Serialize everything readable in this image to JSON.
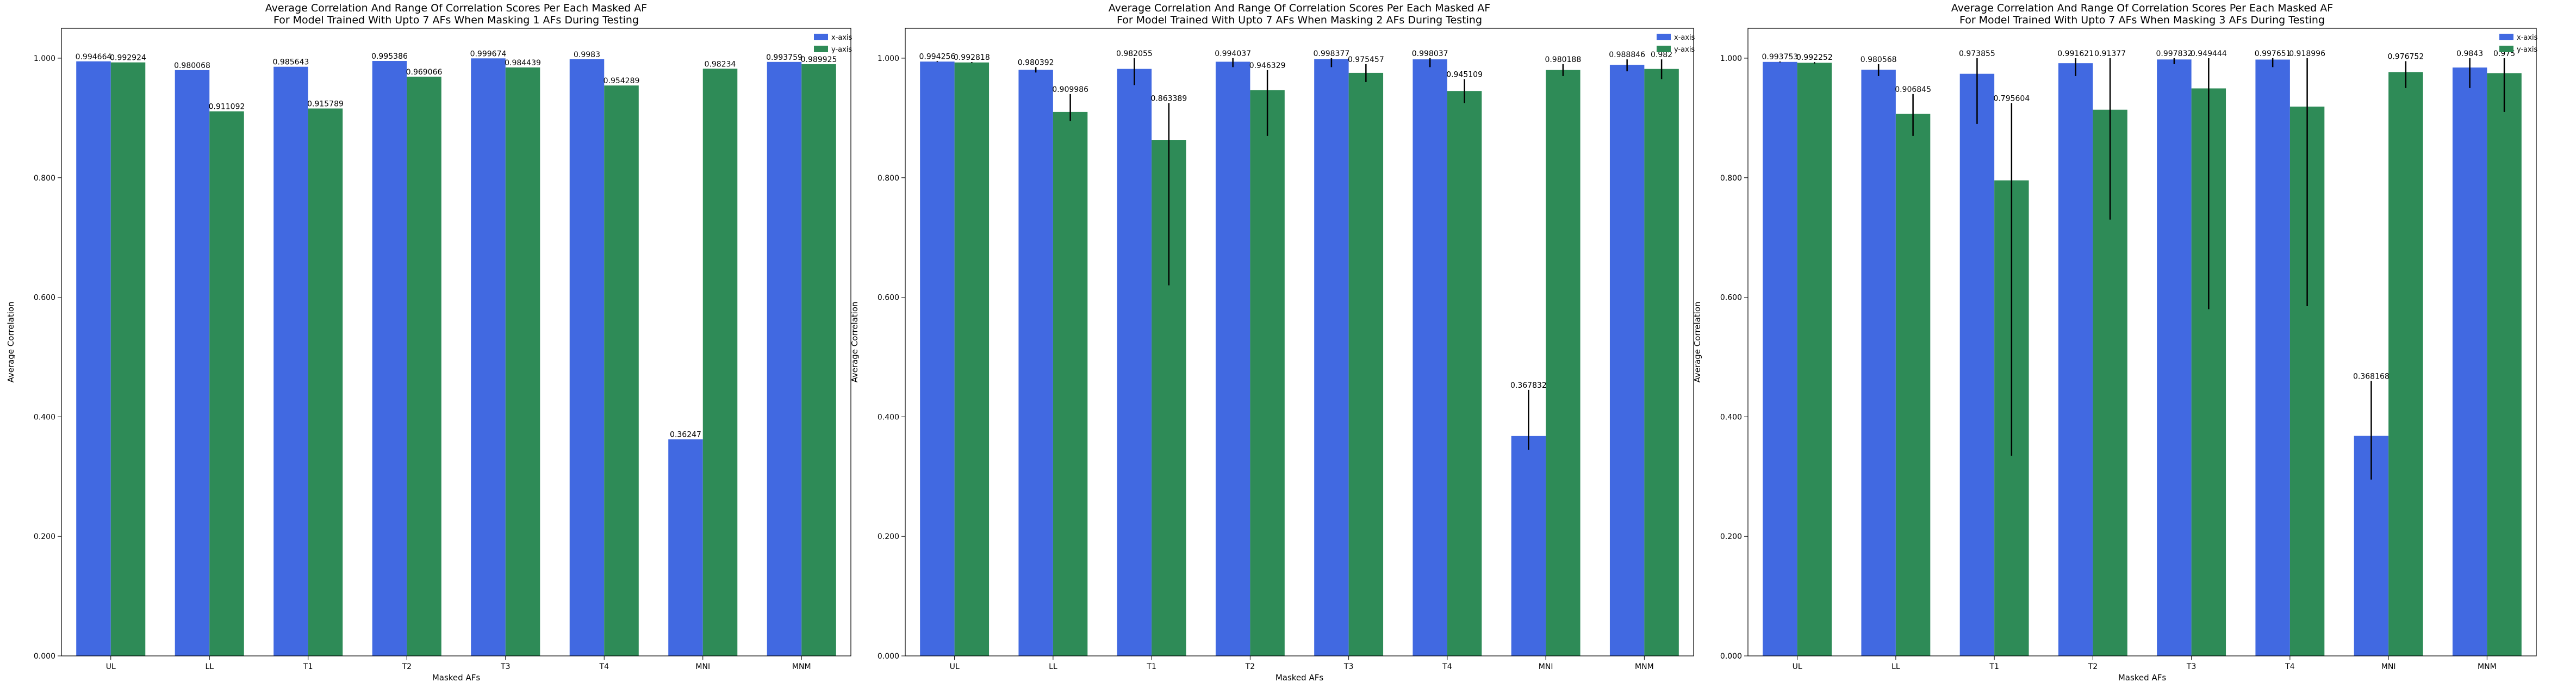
{
  "colors": {
    "x_axis": "#4169e1",
    "y_axis": "#2e8b57",
    "error_bar": "#000000"
  },
  "chart_data": [
    {
      "type": "bar",
      "title": "Average Correlation And Range Of Correlation Scores Per Each Masked AF",
      "subtitle": "For Model Trained With Upto 7 AFs When Masking 1 AFs During Testing",
      "xlabel": "Masked AFs",
      "ylabel": "Average Correlation",
      "ylim": [
        0,
        1.05
      ],
      "yticks": [
        "0.000",
        "0.200",
        "0.400",
        "0.600",
        "0.800",
        "1.000"
      ],
      "categories": [
        "UL",
        "LL",
        "T1",
        "T2",
        "T3",
        "T4",
        "MNI",
        "MNM"
      ],
      "legend": "top-right",
      "series": [
        {
          "name": "x-axis",
          "values": [
            0.994664,
            0.980068,
            0.985643,
            0.995386,
            0.999674,
            0.9983,
            0.36247,
            0.993759
          ],
          "labels": [
            "0.994664",
            "0.980068",
            "0.985643",
            "0.995386",
            "0.999674",
            "0.9983",
            "0.36247",
            "0.993759"
          ],
          "err": [
            [
              0.994664,
              0.994664
            ],
            [
              0.980068,
              0.980068
            ],
            [
              0.985643,
              0.985643
            ],
            [
              0.995386,
              0.995386
            ],
            [
              0.999674,
              0.999674
            ],
            [
              0.9983,
              0.9983
            ],
            [
              0.36247,
              0.36247
            ],
            [
              0.993759,
              0.993759
            ]
          ]
        },
        {
          "name": "y-axis",
          "values": [
            0.992924,
            0.911092,
            0.915789,
            0.969066,
            0.984439,
            0.954289,
            0.98234,
            0.989925
          ],
          "labels": [
            "0.992924",
            "0.911092",
            "0.915789",
            "0.969066",
            "0.984439",
            "0.954289",
            "0.98234",
            "0.989925"
          ],
          "err": [
            [
              0.992924,
              0.992924
            ],
            [
              0.911092,
              0.911092
            ],
            [
              0.915789,
              0.915789
            ],
            [
              0.969066,
              0.969066
            ],
            [
              0.984439,
              0.984439
            ],
            [
              0.954289,
              0.954289
            ],
            [
              0.98234,
              0.98234
            ],
            [
              0.989925,
              0.989925
            ]
          ]
        }
      ]
    },
    {
      "type": "bar",
      "title": "Average Correlation And Range Of Correlation Scores Per Each Masked AF",
      "subtitle": "For Model Trained With Upto 7 AFs When Masking 2 AFs During Testing",
      "xlabel": "Masked AFs",
      "ylabel": "Average Correlation",
      "ylim": [
        0,
        1.05
      ],
      "yticks": [
        "0.000",
        "0.200",
        "0.400",
        "0.600",
        "0.800",
        "1.000"
      ],
      "categories": [
        "UL",
        "LL",
        "T1",
        "T2",
        "T3",
        "T4",
        "MNI",
        "MNM"
      ],
      "legend": "top-right",
      "series": [
        {
          "name": "x-axis",
          "values": [
            0.994256,
            0.980392,
            0.982055,
            0.994037,
            0.998377,
            0.998037,
            0.367832,
            0.988846
          ],
          "labels": [
            "0.994256",
            "0.980392",
            "0.982055",
            "0.994037",
            "0.998377",
            "0.998037",
            "0.367832",
            "0.988846"
          ],
          "err": [
            [
              0.9935,
              0.995
            ],
            [
              0.976,
              0.985
            ],
            [
              0.955,
              1.0
            ],
            [
              0.985,
              1.0
            ],
            [
              0.985,
              1.0
            ],
            [
              0.985,
              1.0
            ],
            [
              0.345,
              0.445
            ],
            [
              0.978,
              0.998
            ]
          ]
        },
        {
          "name": "y-axis",
          "values": [
            0.992818,
            0.909986,
            0.863389,
            0.946329,
            0.975457,
            0.945109,
            0.980188,
            0.982
          ],
          "labels": [
            "0.992818",
            "0.909986",
            "0.863389",
            "0.946329",
            "0.975457",
            "0.945109",
            "0.980188",
            "0.982"
          ],
          "err": [
            [
              0.992,
              0.9935
            ],
            [
              0.895,
              0.94
            ],
            [
              0.62,
              0.925
            ],
            [
              0.87,
              0.98
            ],
            [
              0.96,
              0.99
            ],
            [
              0.925,
              0.965
            ],
            [
              0.97,
              0.99
            ],
            [
              0.965,
              0.998
            ]
          ]
        }
      ]
    },
    {
      "type": "bar",
      "title": "Average Correlation And Range Of Correlation Scores Per Each Masked AF",
      "subtitle": "For Model Trained With Upto 7 AFs When Masking 3 AFs During Testing",
      "xlabel": "Masked AFs",
      "ylabel": "Average Correlation",
      "ylim": [
        0,
        1.05
      ],
      "yticks": [
        "0.000",
        "0.200",
        "0.400",
        "0.600",
        "0.800",
        "1.000"
      ],
      "categories": [
        "UL",
        "LL",
        "T1",
        "T2",
        "T3",
        "T4",
        "MNI",
        "MNM"
      ],
      "legend": "top-right",
      "series": [
        {
          "name": "x-axis",
          "values": [
            0.993753,
            0.980568,
            0.973855,
            0.991621,
            0.997832,
            0.997651,
            0.368168,
            0.9843
          ],
          "labels": [
            "0.993753",
            "0.980568",
            "0.973855",
            "0.991621",
            "0.997832",
            "0.997651",
            "0.368168",
            "0.9843"
          ],
          "err": [
            [
              0.993,
              0.9945
            ],
            [
              0.97,
              0.99
            ],
            [
              0.89,
              1.0
            ],
            [
              0.97,
              1.0
            ],
            [
              0.99,
              1.0
            ],
            [
              0.985,
              1.0
            ],
            [
              0.295,
              0.46
            ],
            [
              0.95,
              1.0
            ]
          ]
        },
        {
          "name": "y-axis",
          "values": [
            0.992252,
            0.906845,
            0.795604,
            0.91377,
            0.949444,
            0.918996,
            0.976752,
            0.975
          ],
          "labels": [
            "0.992252",
            "0.906845",
            "0.795604",
            "0.91377",
            "0.949444",
            "0.918996",
            "0.976752",
            "0.975"
          ],
          "err": [
            [
              0.991,
              0.9935
            ],
            [
              0.87,
              0.94
            ],
            [
              0.335,
              0.925
            ],
            [
              0.73,
              1.0
            ],
            [
              0.58,
              1.0
            ],
            [
              0.585,
              1.0
            ],
            [
              0.95,
              0.995
            ],
            [
              0.91,
              1.0
            ]
          ]
        }
      ]
    }
  ]
}
